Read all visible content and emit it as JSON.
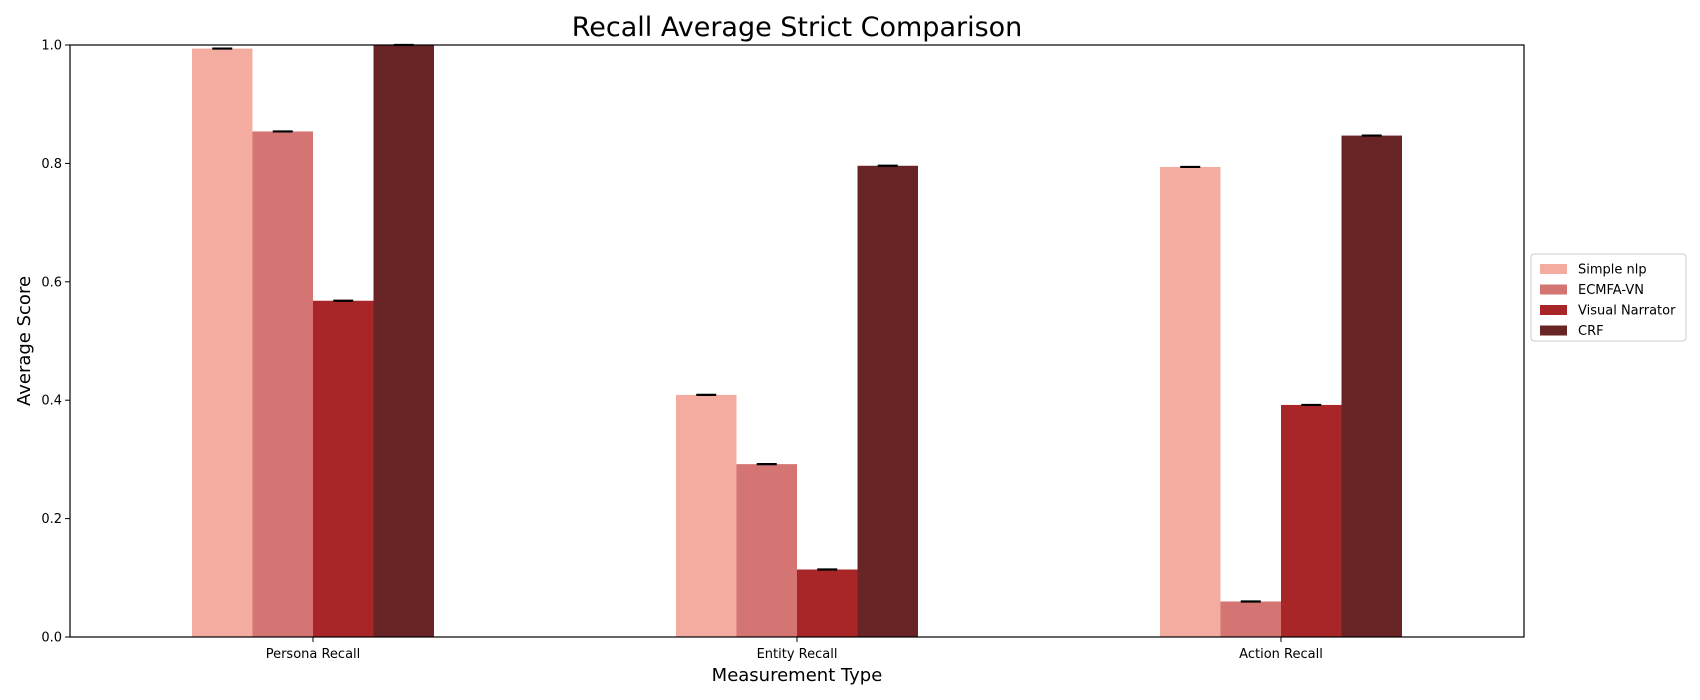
{
  "chart_data": {
    "type": "bar",
    "title": "Recall Average Strict Comparison",
    "xlabel": "Measurement Type",
    "ylabel": "Average Score",
    "categories": [
      "Persona Recall",
      "Entity Recall",
      "Action Recall"
    ],
    "ylim": [
      0,
      1.0
    ],
    "yticks": [
      "0.0",
      "0.2",
      "0.4",
      "0.6",
      "0.8",
      "1.0"
    ],
    "grid": false,
    "legend_position": "right",
    "error_bars": true,
    "series": [
      {
        "name": "Simple nlp",
        "color": "#f4aca0",
        "values": [
          0.994,
          0.409,
          0.794
        ]
      },
      {
        "name": "ECMFA-VN",
        "color": "#d47473",
        "values": [
          0.854,
          0.292,
          0.06
        ]
      },
      {
        "name": "Visual Narrator",
        "color": "#a82628",
        "values": [
          0.568,
          0.114,
          0.392
        ]
      },
      {
        "name": "CRF",
        "color": "#692426",
        "values": [
          1.0,
          0.796,
          0.847
        ]
      }
    ]
  }
}
